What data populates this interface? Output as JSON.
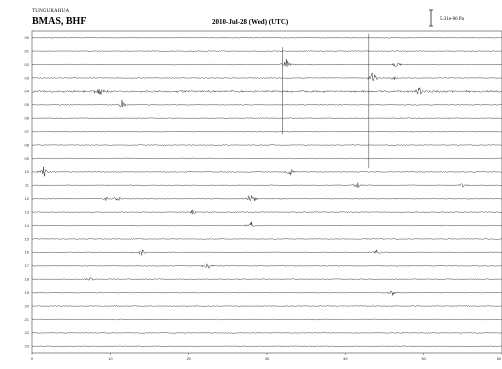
{
  "header": {
    "network": "TUNGURAHUA",
    "station": "BMAS, BHF",
    "date": "2010-Jul-28 (Wed) (UTC)",
    "scale": "5.31e-06 Pa"
  },
  "chart_data": {
    "type": "line",
    "title": "2010-Jul-28 (Wed) (UTC)",
    "xlabel": "",
    "ylabel": "",
    "xlim": [
      0,
      60
    ],
    "x_ticks": [
      "0",
      "10",
      "20",
      "30",
      "40",
      "50",
      "60"
    ],
    "y_ticks": [
      "00",
      "01",
      "02",
      "03",
      "04",
      "05",
      "06",
      "07",
      "08",
      "09",
      "10",
      "11",
      "12",
      "13",
      "14",
      "15",
      "16",
      "17",
      "18",
      "19",
      "20",
      "21",
      "22",
      "23"
    ],
    "grid": false,
    "rows": 24,
    "events": [
      {
        "row": 2,
        "minute": 32.5,
        "amp": 7
      },
      {
        "row": 2,
        "minute": 46.5,
        "amp": 5
      },
      {
        "row": 3,
        "minute": 43.5,
        "amp": 8
      },
      {
        "row": 3,
        "minute": 46.0,
        "amp": 4
      },
      {
        "row": 4,
        "minute": 8.5,
        "amp": 9
      },
      {
        "row": 4,
        "minute": 49.5,
        "amp": 5
      },
      {
        "row": 5,
        "minute": 11.5,
        "amp": 6
      },
      {
        "row": 10,
        "minute": 1.5,
        "amp": 6
      },
      {
        "row": 10,
        "minute": 33.0,
        "amp": 4
      },
      {
        "row": 11,
        "minute": 41.5,
        "amp": 5
      },
      {
        "row": 11,
        "minute": 55.0,
        "amp": 3
      },
      {
        "row": 12,
        "minute": 9.5,
        "amp": 3
      },
      {
        "row": 12,
        "minute": 11.0,
        "amp": 4
      },
      {
        "row": 12,
        "minute": 28.0,
        "amp": 9
      },
      {
        "row": 13,
        "minute": 20.5,
        "amp": 3
      },
      {
        "row": 14,
        "minute": 28.0,
        "amp": 5
      },
      {
        "row": 16,
        "minute": 14.0,
        "amp": 4
      },
      {
        "row": 16,
        "minute": 44.0,
        "amp": 3
      },
      {
        "row": 17,
        "minute": 22.5,
        "amp": 6
      },
      {
        "row": 18,
        "minute": 7.5,
        "amp": 3
      },
      {
        "row": 19,
        "minute": 46.0,
        "amp": 4
      }
    ],
    "long_spikes": [
      {
        "row": 1,
        "minute": 32.0,
        "span_rows": 6.5
      },
      {
        "row": 0,
        "minute": 43.0,
        "span_rows": 10
      }
    ]
  }
}
